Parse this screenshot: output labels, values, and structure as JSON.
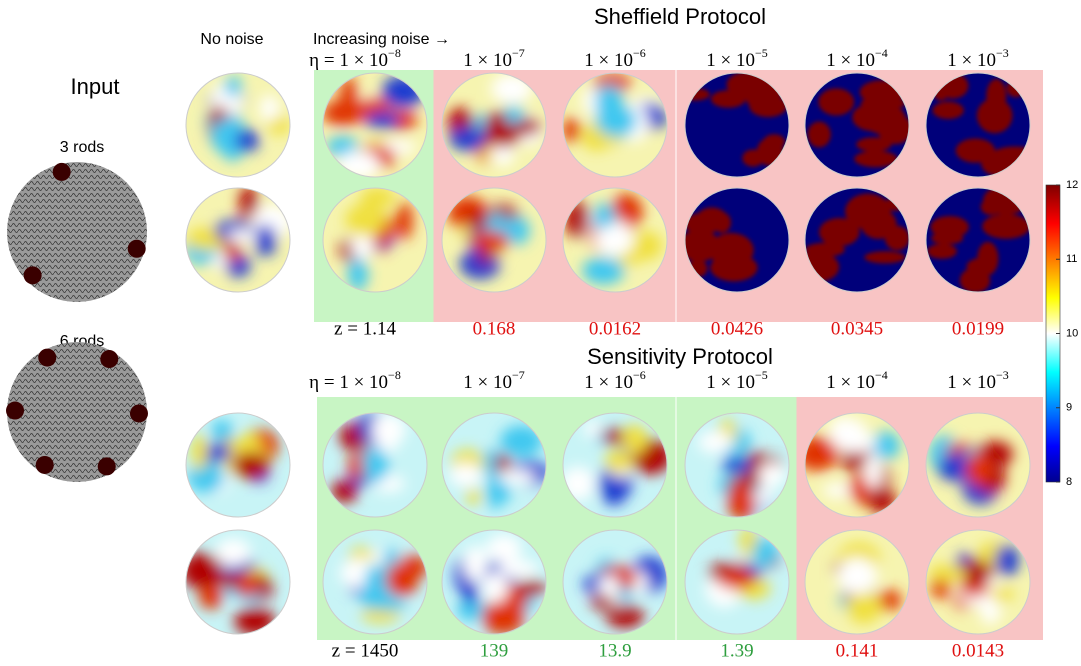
{
  "input_title": "Input",
  "input_labels": [
    "3 rods",
    "6 rods"
  ],
  "no_noise": "No noise",
  "increasing_noise": "Increasing noise →",
  "protocols": [
    {
      "title": "Sheffield Protocol",
      "noise_labels": [
        {
          "text": "η = 1 × 10",
          "exp": "−8"
        },
        {
          "text": "1 × 10",
          "exp": "−7"
        },
        {
          "text": "1 × 10",
          "exp": "−6"
        },
        {
          "text": "1 × 10",
          "exp": "−5"
        },
        {
          "text": "1 × 10",
          "exp": "−4"
        },
        {
          "text": "1 × 10",
          "exp": "−3"
        }
      ],
      "z_scores": [
        {
          "text": "z = 1.14",
          "color": "#000000"
        },
        {
          "text": "0.168",
          "color": "#e01010"
        },
        {
          "text": "0.0162",
          "color": "#e01010"
        },
        {
          "text": "0.0426",
          "color": "#e01010"
        },
        {
          "text": "0.0345",
          "color": "#e01010"
        },
        {
          "text": "0.0199",
          "color": "#e01010"
        }
      ],
      "panel_colors": [
        "#c8f5c4",
        "#f8c4c4",
        "#f8c4c4",
        "#f8c4c4",
        "#f8c4c4",
        "#f8c4c4"
      ]
    },
    {
      "title": "Sensitivity Protocol",
      "noise_labels": [
        {
          "text": "η = 1 × 10",
          "exp": "−8"
        },
        {
          "text": "1 × 10",
          "exp": "−7"
        },
        {
          "text": "1 × 10",
          "exp": "−6"
        },
        {
          "text": "1 × 10",
          "exp": "−5"
        },
        {
          "text": "1 × 10",
          "exp": "−4"
        },
        {
          "text": "1 × 10",
          "exp": "−3"
        }
      ],
      "z_scores": [
        {
          "text": "z = 1450",
          "color": "#000000"
        },
        {
          "text": "139",
          "color": "#2e9e3e"
        },
        {
          "text": "13.9",
          "color": "#2e9e3e"
        },
        {
          "text": "1.39",
          "color": "#2e9e3e"
        },
        {
          "text": "0.141",
          "color": "#e01010"
        },
        {
          "text": "0.0143",
          "color": "#e01010"
        }
      ],
      "panel_colors": [
        "#c8f5c4",
        "#c8f5c4",
        "#c8f5c4",
        "#c8f5c4",
        "#f8c4c4",
        "#f8c4c4"
      ]
    }
  ],
  "colorbar": {
    "lim": [
      8,
      12
    ],
    "ticks": [
      8,
      9,
      10,
      11,
      12
    ]
  }
}
